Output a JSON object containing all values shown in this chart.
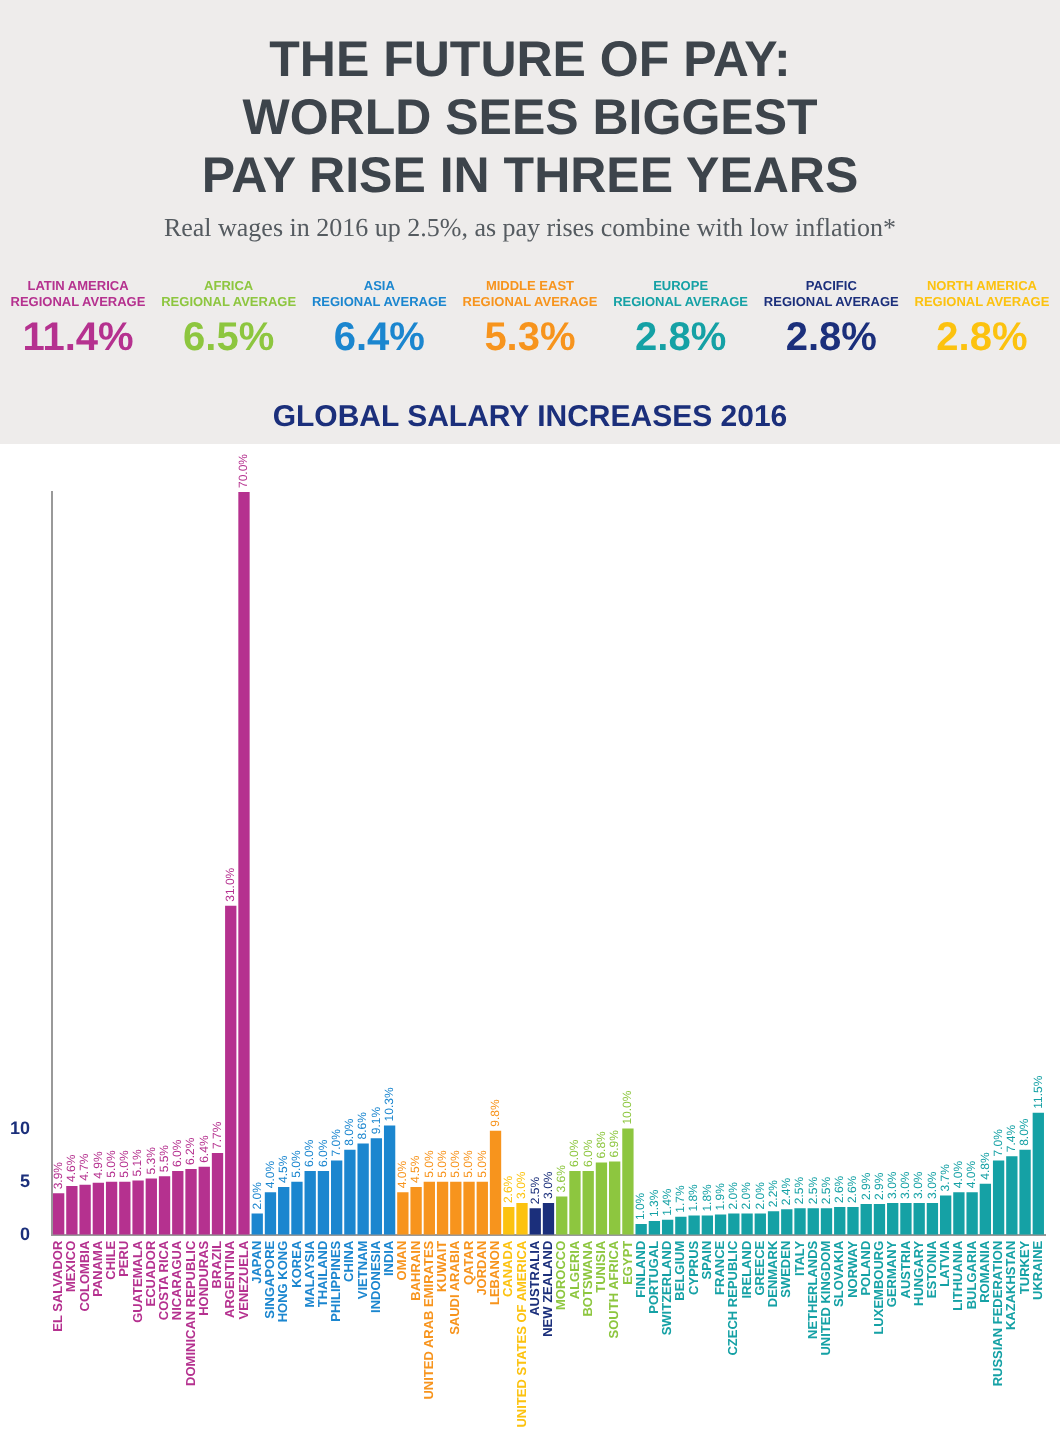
{
  "chart_data": {
    "type": "bar",
    "title": "THE FUTURE OF PAY:\nWORLD SEES BIGGEST\nPAY RISE IN THREE YEARS",
    "subtitle": "Real wages in 2016 up 2.5%, as pay rises combine with low inflation*",
    "annotations": [
      "GLOBAL SALARY INCREASES 2016",
      "LATIN AMERICA\nREGIONAL AVERAGE",
      "11.4%",
      "AFRICA\nREGIONAL AVERAGE",
      "6.5%",
      "ASIA\nREGIONAL AVERAGE",
      "6.4%",
      "MIDDLE EAST\nREGIONAL AVERAGE",
      "5.3%",
      "EUROPE\nREGIONAL AVERAGE",
      "2.8%",
      "PACIFIC\nREGIONAL AVERAGE",
      "2.8%",
      "NORTH AMERICA\nREGIONAL AVERAGE",
      "2.8%"
    ],
    "categories": [
      "EL SALVADOR",
      "MEXICO",
      "COLOMBIA",
      "PANAMA",
      "CHILE",
      "PERU",
      "GUATEMALA",
      "ECUADOR",
      "COSTA RICA",
      "NICARAGUA",
      "DOMINICAN REPUBLIC",
      "HONDURAS",
      "BRAZIL",
      "ARGENTINA",
      "VENEZUELA",
      "JAPAN",
      "SINGAPORE",
      "HONG KONG",
      "KOREA",
      "MALAYSIA",
      "THAILAND",
      "PHILIPPINES",
      "CHINA",
      "VIETNAM",
      "INDONESIA",
      "INDIA",
      "OMAN",
      "BAHRAIN",
      "UNITED ARAB EMIRATES",
      "KUWAIT",
      "SAUDI ARABIA",
      "QATAR",
      "JORDAN",
      "LEBANON",
      "CANADA",
      "UNITED STATES OF AMERICA",
      "AUSTRALIA",
      "NEW ZEALAND",
      "MOROCCO",
      "ALGERIA",
      "BOTSWANA",
      "TUNISIA",
      "SOUTH AFRICA",
      "EGYPT",
      "FINLAND",
      "PORTUGAL",
      "SWITZERLAND",
      "BELGIUM",
      "CYPRUS",
      "SPAIN",
      "FRANCE",
      "CZECH REPUBLIC",
      "IRELAND",
      "GREECE",
      "DENMARK",
      "SWEDEN",
      "ITALY",
      "NETHERLANDS",
      "UNITED KINGDOM",
      "SLOVAKIA",
      "NORWAY",
      "POLAND",
      "LUXEMBOURG",
      "GERMANY",
      "AUSTRIA",
      "HUNGARY",
      "ESTONIA",
      "LATVIA",
      "LITHUANIA",
      "BULGARIA",
      "ROMANIA",
      "RUSSIAN FEDERATION",
      "KAZAKHSTAN",
      "TURKEY",
      "UKRAINE"
    ],
    "values": [
      3.9,
      4.6,
      4.7,
      4.9,
      5.0,
      5.0,
      5.1,
      5.3,
      5.5,
      6.0,
      6.2,
      6.4,
      7.7,
      31.0,
      70.0,
      2.0,
      4.0,
      4.5,
      5.0,
      6.0,
      6.0,
      7.0,
      8.0,
      8.6,
      9.1,
      10.3,
      4.0,
      4.5,
      5.0,
      5.0,
      5.0,
      5.0,
      5.0,
      9.8,
      2.6,
      3.0,
      2.5,
      3.0,
      3.6,
      6.0,
      6.0,
      6.8,
      6.9,
      10.0,
      1.0,
      1.3,
      1.4,
      1.7,
      1.8,
      1.8,
      1.9,
      2.0,
      2.0,
      2.0,
      2.2,
      2.4,
      2.5,
      2.5,
      2.5,
      2.6,
      2.6,
      2.9,
      2.9,
      3.0,
      3.0,
      3.0,
      3.0,
      3.7,
      4.0,
      4.0,
      4.8,
      7.0,
      7.4,
      8.0,
      11.5
    ],
    "value_labels": [
      "3.9%",
      "4.6%",
      "4.7%",
      "4.9%",
      "5.0%",
      "5.0%",
      "5.1%",
      "5.3%",
      "5.5%",
      "6.0%",
      "6.2%",
      "6.4%",
      "7.7%",
      "31.0%",
      "70.0%",
      "2.0%",
      "4.0%",
      "4.5%",
      "5.0%",
      "6.0%",
      "6.0%",
      "7.0%",
      "8.0%",
      "8.6%",
      "9.1%",
      "10.3%",
      "4.0%",
      "4.5%",
      "5.0%",
      "5.0%",
      "5.0%",
      "5.0%",
      "5.0%",
      "9.8%",
      "2.6%",
      "3.0%",
      "2.5%",
      "3.0%",
      "3.6%",
      "6.0%",
      "6.0%",
      "6.8%",
      "6.9%",
      "10.0%",
      "1.0%",
      "1.3%",
      "1.4%",
      "1.7%",
      "1.8%",
      "1.8%",
      "1.9%",
      "2.0%",
      "2.0%",
      "2.0%",
      "2.2%",
      "2.4%",
      "2.5%",
      "2.5%",
      "2.5%",
      "2.6%",
      "2.6%",
      "2.9%",
      "2.9%",
      "3.0%",
      "3.0%",
      "3.0%",
      "3.0%",
      "3.7%",
      "4.0%",
      "4.0%",
      "4.8%",
      "7.0%",
      "7.4%",
      "8.0%",
      "11.5%"
    ],
    "colors": [
      "#b5318f",
      "#b5318f",
      "#b5318f",
      "#b5318f",
      "#b5318f",
      "#b5318f",
      "#b5318f",
      "#b5318f",
      "#b5318f",
      "#b5318f",
      "#b5318f",
      "#b5318f",
      "#b5318f",
      "#b5318f",
      "#b5318f",
      "#1b86cf",
      "#1b86cf",
      "#1b86cf",
      "#1b86cf",
      "#1b86cf",
      "#1b86cf",
      "#1b86cf",
      "#1b86cf",
      "#1b86cf",
      "#1b86cf",
      "#1b86cf",
      "#f7941d",
      "#f7941d",
      "#f7941d",
      "#f7941d",
      "#f7941d",
      "#f7941d",
      "#f7941d",
      "#f7941d",
      "#fcc20f",
      "#fcc20f",
      "#1b2f7b",
      "#1b2f7b",
      "#8dc63f",
      "#8dc63f",
      "#8dc63f",
      "#8dc63f",
      "#8dc63f",
      "#8dc63f",
      "#15a1a5",
      "#15a1a5",
      "#15a1a5",
      "#15a1a5",
      "#15a1a5",
      "#15a1a5",
      "#15a1a5",
      "#15a1a5",
      "#15a1a5",
      "#15a1a5",
      "#15a1a5",
      "#15a1a5",
      "#15a1a5",
      "#15a1a5",
      "#15a1a5",
      "#15a1a5",
      "#15a1a5",
      "#15a1a5",
      "#15a1a5",
      "#15a1a5",
      "#15a1a5",
      "#15a1a5",
      "#15a1a5",
      "#15a1a5",
      "#15a1a5",
      "#15a1a5",
      "#15a1a5",
      "#15a1a5",
      "#15a1a5",
      "#15a1a5",
      "#15a1a5"
    ],
    "ylim": [
      0,
      70
    ],
    "yticks": [
      0,
      5,
      10
    ]
  }
}
